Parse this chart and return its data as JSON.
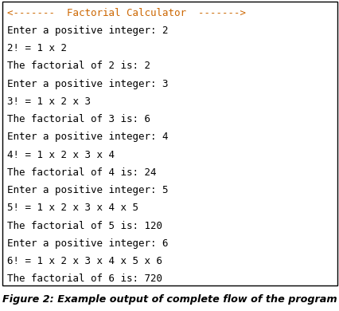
{
  "title_line": "<-------  Factorial Calculator  ------->",
  "content_lines": [
    "Enter a positive integer: 2",
    "2! = 1 x 2",
    "The factorial of 2 is: 2",
    "Enter a positive integer: 3",
    "3! = 1 x 2 x 3",
    "The factorial of 3 is: 6",
    "Enter a positive integer: 4",
    "4! = 1 x 2 x 3 x 4",
    "The factorial of 4 is: 24",
    "Enter a positive integer: 5",
    "5! = 1 x 2 x 3 x 4 x 5",
    "The factorial of 5 is: 120",
    "Enter a positive integer: 6",
    "6! = 1 x 2 x 3 x 4 x 5 x 6",
    "The factorial of 6 is: 720"
  ],
  "caption": "Figure 2: Example output of complete flow of the program",
  "bg_color": "#ffffff",
  "box_bg_color": "#ffffff",
  "box_border_color": "#000000",
  "title_color": "#cc6600",
  "text_color": "#000000",
  "caption_color": "#000000",
  "font_size": 9.0,
  "caption_font_size": 9.2,
  "figwidth": 4.27,
  "figheight": 3.9,
  "dpi": 100
}
